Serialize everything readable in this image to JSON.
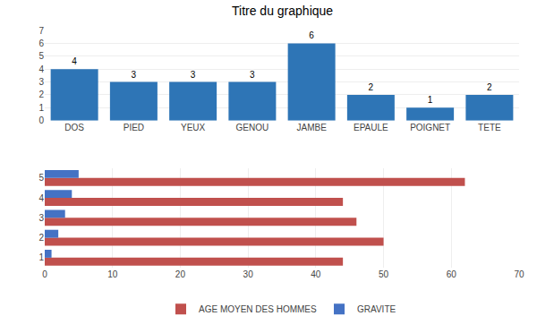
{
  "chart_data": [
    {
      "type": "bar",
      "title": "Titre du graphique",
      "categories": [
        "DOS",
        "PIED",
        "YEUX",
        "GENOU",
        "JAMBE",
        "EPAULE",
        "POIGNET",
        "TETE"
      ],
      "values": [
        4,
        3,
        3,
        3,
        6,
        2,
        1,
        2
      ],
      "color": "#2E75B6",
      "ylim": [
        0,
        7
      ],
      "yticks": [
        0,
        1,
        2,
        3,
        4,
        5,
        6,
        7
      ],
      "grid": true,
      "data_labels": true
    },
    {
      "type": "bar",
      "orientation": "horizontal",
      "categories": [
        "1",
        "2",
        "3",
        "4",
        "5"
      ],
      "series": [
        {
          "name": "AGE MOYEN DES HOMMES",
          "color": "#C0504D",
          "values": [
            44,
            50,
            46,
            44,
            62
          ]
        },
        {
          "name": "GRAVITE",
          "color": "#4472C4",
          "values": [
            1,
            2,
            3,
            4,
            5
          ]
        }
      ],
      "xlim": [
        0,
        70
      ],
      "xticks": [
        0,
        10,
        20,
        30,
        40,
        50,
        60,
        70
      ],
      "grid": true,
      "legend": "bottom"
    }
  ]
}
